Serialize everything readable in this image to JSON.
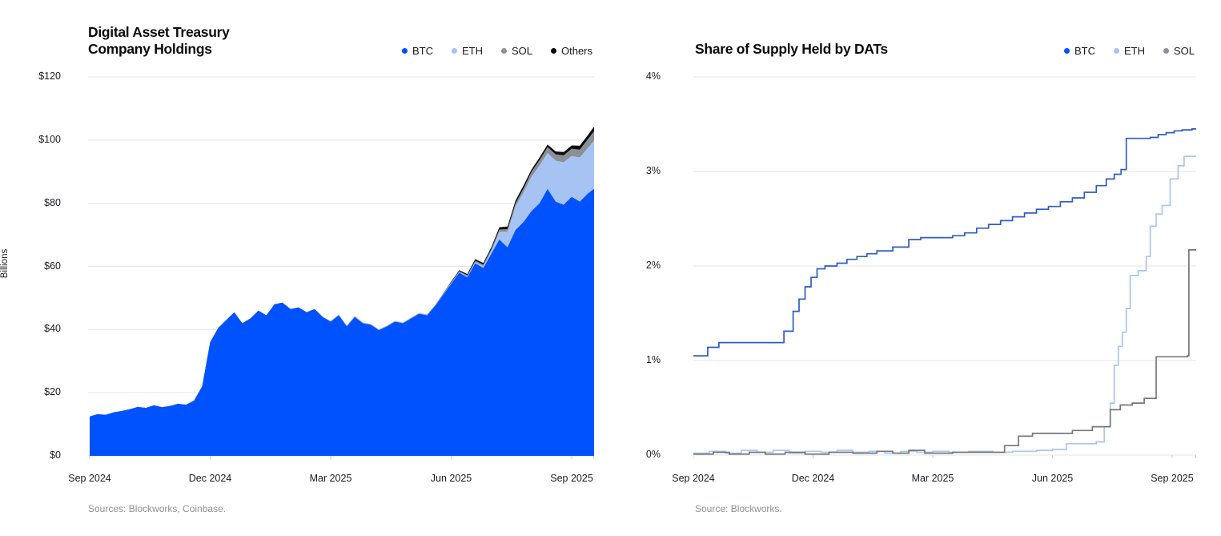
{
  "charts": [
    {
      "title_lines": [
        "Digital Asset Treasury",
        "Company Holdings"
      ],
      "y_axis_label": "Billions",
      "source": "Sources: Blockworks, Coinbase.",
      "legend": [
        {
          "label": "BTC",
          "color": "#0052ff"
        },
        {
          "label": "ETH",
          "color": "#a6c3f3"
        },
        {
          "label": "SOL",
          "color": "#8e9095"
        },
        {
          "label": "Others",
          "color": "#0a0b0d"
        }
      ],
      "chart_data": {
        "type": "area",
        "stacked": true,
        "title": "Digital Asset Treasury Company Holdings",
        "ylabel": "Billions",
        "ylim": [
          0,
          120
        ],
        "grid": true,
        "legend_position": "top-right",
        "y_ticks": [
          {
            "value": 120,
            "label": "$120"
          },
          {
            "value": 100,
            "label": "$100"
          },
          {
            "value": 80,
            "label": "$80"
          },
          {
            "value": 60,
            "label": "$60"
          },
          {
            "value": 40,
            "label": "$40"
          },
          {
            "value": 20,
            "label": "$20"
          },
          {
            "value": 0,
            "label": "$0"
          }
        ],
        "x_unit": "months since Sep 2024",
        "x_start": 0,
        "x_step": 0.2,
        "x_tick_positions": [
          0,
          3,
          6,
          9,
          12
        ],
        "x_tick_labels": [
          "Sep 2024",
          "Dec 2024",
          "Mar 2025",
          "Jun 2025",
          "Sep 2025"
        ],
        "series": [
          {
            "name": "BTC",
            "color": "#0052ff",
            "values": [
              12.5,
              13.2,
              13.0,
              13.8,
              14.2,
              14.8,
              15.5,
              15.2,
              16.0,
              15.4,
              15.8,
              16.5,
              16.2,
              17.5,
              22.0,
              36.0,
              40.5,
              43.0,
              45.5,
              42.0,
              43.5,
              46.0,
              44.5,
              48.0,
              48.5,
              46.5,
              47.0,
              45.5,
              46.5,
              44.0,
              42.5,
              44.5,
              41.0,
              44.0,
              42.0,
              41.5,
              39.8,
              41.0,
              42.5,
              42.0,
              43.5,
              45.0,
              44.5,
              47.5,
              51.0,
              54.5,
              58.0,
              56.5,
              61.0,
              59.5,
              64.0,
              68.5,
              66.0,
              71.5,
              74.0,
              77.5,
              80.0,
              84.5,
              80.5,
              79.5,
              82.0,
              80.5,
              83.0,
              85.0
            ]
          },
          {
            "name": "ETH",
            "color": "#a6c3f3",
            "values": [
              0,
              0,
              0,
              0,
              0,
              0,
              0,
              0,
              0,
              0,
              0,
              0,
              0,
              0,
              0,
              0,
              0,
              0,
              0,
              0,
              0,
              0,
              0,
              0,
              0,
              0,
              0,
              0,
              0,
              0,
              0.2,
              0.2,
              0.2,
              0.2,
              0.2,
              0.2,
              0.2,
              0.2,
              0.2,
              0.2,
              0.2,
              0.2,
              0.2,
              0.2,
              0.2,
              0.2,
              0.2,
              0.3,
              0.4,
              0.6,
              1.0,
              2.5,
              5.0,
              7.5,
              9.5,
              11.0,
              12.0,
              11.5,
              13.0,
              13.5,
              13.0,
              14.0,
              14.5,
              15.5
            ]
          },
          {
            "name": "SOL",
            "color": "#8c8f94",
            "values": [
              0,
              0,
              0,
              0,
              0,
              0,
              0,
              0,
              0,
              0,
              0,
              0,
              0,
              0,
              0,
              0,
              0,
              0,
              0,
              0,
              0,
              0,
              0,
              0,
              0,
              0,
              0,
              0,
              0,
              0,
              0,
              0,
              0,
              0,
              0,
              0,
              0,
              0,
              0,
              0,
              0,
              0,
              0,
              0,
              0.2,
              0.3,
              0.3,
              0.4,
              0.4,
              0.5,
              0.5,
              0.7,
              0.8,
              1.0,
              1.2,
              1.5,
              1.7,
              1.8,
              2.0,
              2.2,
              2.3,
              2.5,
              2.8,
              3.0
            ]
          },
          {
            "name": "Others",
            "color": "#0a0b0d",
            "values": [
              0,
              0,
              0,
              0,
              0,
              0,
              0,
              0,
              0,
              0,
              0,
              0,
              0,
              0,
              0,
              0,
              0,
              0,
              0,
              0,
              0,
              0,
              0,
              0,
              0,
              0,
              0,
              0,
              0,
              0,
              0,
              0,
              0,
              0,
              0,
              0,
              0,
              0,
              0,
              0,
              0,
              0,
              0,
              0,
              0,
              0.2,
              0.3,
              0.4,
              0.5,
              0.5,
              0.6,
              0.7,
              0.8,
              0.8,
              0.9,
              0.7,
              0.8,
              0.8,
              0.9,
              1.0,
              1.0,
              1.2,
              1.2,
              1.5
            ]
          }
        ]
      }
    },
    {
      "title_lines": [
        "Share of Supply Held by DATs"
      ],
      "y_axis_label": "",
      "source": "Source: Blockworks.",
      "legend": [
        {
          "label": "BTC",
          "color": "#0052ff"
        },
        {
          "label": "ETH",
          "color": "#a6c3f3"
        },
        {
          "label": "SOL",
          "color": "#8e9095"
        }
      ],
      "chart_data": {
        "type": "line",
        "line_style": "step-after",
        "title": "Share of Supply Held by DATs",
        "ylabel": "",
        "ylim": [
          0,
          4
        ],
        "grid": true,
        "legend_position": "top-right",
        "y_ticks": [
          {
            "value": 4,
            "label": "4%"
          },
          {
            "value": 3,
            "label": "3%"
          },
          {
            "value": 2,
            "label": "2%"
          },
          {
            "value": 1,
            "label": "1%"
          },
          {
            "value": 0,
            "label": "0%"
          }
        ],
        "x_unit": "months since Sep 2024",
        "x_tick_positions": [
          0,
          3,
          6,
          9,
          12
        ],
        "x_tick_labels": [
          "Sep 2024",
          "Dec 2024",
          "Mar 2025",
          "Jun 2025",
          "Sep 2025"
        ],
        "series": [
          {
            "name": "BTC",
            "color": "#2d5dc4",
            "points": [
              [
                0,
                1.05
              ],
              [
                0.36,
                1.14
              ],
              [
                0.64,
                1.19
              ],
              [
                2.27,
                1.31
              ],
              [
                2.5,
                1.52
              ],
              [
                2.65,
                1.65
              ],
              [
                2.8,
                1.78
              ],
              [
                2.95,
                1.88
              ],
              [
                3.1,
                1.97
              ],
              [
                3.3,
                2.0
              ],
              [
                3.6,
                2.03
              ],
              [
                3.85,
                2.07
              ],
              [
                4.1,
                2.1
              ],
              [
                4.35,
                2.13
              ],
              [
                4.6,
                2.16
              ],
              [
                5.0,
                2.2
              ],
              [
                5.4,
                2.28
              ],
              [
                5.7,
                2.3
              ],
              [
                6.5,
                2.32
              ],
              [
                6.8,
                2.35
              ],
              [
                7.1,
                2.4
              ],
              [
                7.4,
                2.44
              ],
              [
                7.7,
                2.48
              ],
              [
                8.0,
                2.52
              ],
              [
                8.3,
                2.56
              ],
              [
                8.6,
                2.6
              ],
              [
                8.9,
                2.63
              ],
              [
                9.2,
                2.68
              ],
              [
                9.5,
                2.72
              ],
              [
                9.8,
                2.78
              ],
              [
                10.1,
                2.85
              ],
              [
                10.35,
                2.92
              ],
              [
                10.55,
                2.97
              ],
              [
                10.72,
                3.02
              ],
              [
                10.85,
                3.35
              ],
              [
                11.45,
                3.36
              ],
              [
                11.65,
                3.39
              ],
              [
                11.85,
                3.41
              ],
              [
                12.05,
                3.43
              ],
              [
                12.25,
                3.44
              ],
              [
                12.5,
                3.45
              ]
            ]
          },
          {
            "name": "ETH",
            "color": "#a9c6f1",
            "points": [
              [
                0,
                0.02
              ],
              [
                0.4,
                0.04
              ],
              [
                0.8,
                0.02
              ],
              [
                1.2,
                0.05
              ],
              [
                1.6,
                0.03
              ],
              [
                2.0,
                0.05
              ],
              [
                2.4,
                0.02
              ],
              [
                2.8,
                0.04
              ],
              [
                3.2,
                0.03
              ],
              [
                3.6,
                0.05
              ],
              [
                4.0,
                0.03
              ],
              [
                4.4,
                0.04
              ],
              [
                4.8,
                0.02
              ],
              [
                5.2,
                0.04
              ],
              [
                5.6,
                0.03
              ],
              [
                6.0,
                0.04
              ],
              [
                6.4,
                0.03
              ],
              [
                6.9,
                0.04
              ],
              [
                7.5,
                0.03
              ],
              [
                8.0,
                0.04
              ],
              [
                8.6,
                0.05
              ],
              [
                9.0,
                0.06
              ],
              [
                9.35,
                0.12
              ],
              [
                10.1,
                0.14
              ],
              [
                10.3,
                0.3
              ],
              [
                10.45,
                0.55
              ],
              [
                10.55,
                0.95
              ],
              [
                10.65,
                1.15
              ],
              [
                10.75,
                1.3
              ],
              [
                10.85,
                1.55
              ],
              [
                10.95,
                1.9
              ],
              [
                11.15,
                1.95
              ],
              [
                11.35,
                2.1
              ],
              [
                11.45,
                2.42
              ],
              [
                11.6,
                2.55
              ],
              [
                11.75,
                2.64
              ],
              [
                11.95,
                2.92
              ],
              [
                12.15,
                3.06
              ],
              [
                12.3,
                3.16
              ],
              [
                12.5,
                3.16
              ]
            ]
          },
          {
            "name": "SOL",
            "color": "#75777b",
            "points": [
              [
                0,
                0.01
              ],
              [
                0.5,
                0.03
              ],
              [
                0.9,
                0.01
              ],
              [
                1.4,
                0.03
              ],
              [
                1.8,
                0.01
              ],
              [
                2.3,
                0.03
              ],
              [
                2.8,
                0.01
              ],
              [
                3.4,
                0.03
              ],
              [
                4.0,
                0.02
              ],
              [
                4.6,
                0.04
              ],
              [
                5.0,
                0.02
              ],
              [
                5.4,
                0.05
              ],
              [
                5.8,
                0.02
              ],
              [
                6.5,
                0.03
              ],
              [
                7.0,
                0.03
              ],
              [
                7.8,
                0.1
              ],
              [
                8.15,
                0.2
              ],
              [
                8.5,
                0.23
              ],
              [
                9.5,
                0.26
              ],
              [
                10.0,
                0.3
              ],
              [
                10.45,
                0.48
              ],
              [
                10.7,
                0.53
              ],
              [
                11.0,
                0.55
              ],
              [
                11.3,
                0.6
              ],
              [
                11.6,
                1.04
              ],
              [
                12.38,
                1.05
              ],
              [
                12.42,
                2.17
              ],
              [
                12.5,
                2.17
              ]
            ]
          }
        ]
      }
    }
  ]
}
